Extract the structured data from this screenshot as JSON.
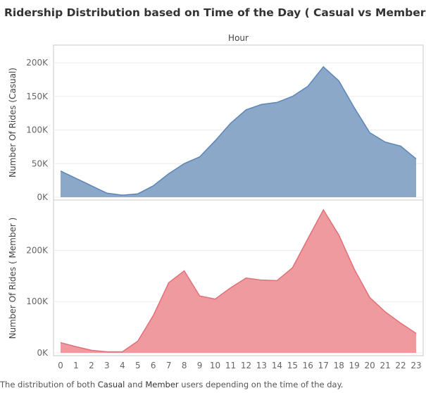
{
  "title": "Ridership Distribution based on Time of the Day ( Casual vs Member )",
  "caption": {
    "prefix": "The distribution of both ",
    "casual": "Casual",
    "and": " and ",
    "member": "Member",
    "suffix": " users depending on the time of the day."
  },
  "colors": {
    "casual": "#7f9fc3",
    "casual_line": "#5b86b8",
    "member": "#ec8f94",
    "member_line": "#e07079",
    "grid": "#ececec",
    "axis": "#c8c8c8"
  },
  "chart_data": [
    {
      "type": "area",
      "title": "Hour",
      "xlabel": "",
      "ylabel": "Number Of Rides (Casual)",
      "x": [
        0,
        1,
        2,
        3,
        4,
        5,
        6,
        7,
        8,
        9,
        10,
        11,
        12,
        13,
        14,
        15,
        16,
        17,
        18,
        19,
        20,
        21,
        22,
        23
      ],
      "series": [
        {
          "name": "Casual",
          "values": [
            39000,
            28000,
            17000,
            6000,
            3000,
            5000,
            17000,
            35000,
            50000,
            60000,
            84000,
            110000,
            130000,
            138000,
            141000,
            150000,
            165000,
            194000,
            173000,
            133000,
            96000,
            82000,
            76000,
            57000
          ]
        }
      ],
      "ylim": [
        0,
        220000
      ],
      "yticks": [
        0,
        50000,
        100000,
        150000,
        200000
      ],
      "ytick_labels": [
        "0K",
        "50K",
        "100K",
        "150K",
        "200K"
      ],
      "grid": true
    },
    {
      "type": "area",
      "xlabel": "",
      "ylabel": "Number Of Rides ( Member )",
      "x": [
        0,
        1,
        2,
        3,
        4,
        5,
        6,
        7,
        8,
        9,
        10,
        11,
        12,
        13,
        14,
        15,
        16,
        17,
        18,
        19,
        20,
        21,
        22,
        23
      ],
      "series": [
        {
          "name": "Member",
          "values": [
            20000,
            12000,
            5000,
            2000,
            2000,
            23000,
            73000,
            137000,
            160000,
            111000,
            105000,
            127000,
            146000,
            142000,
            141000,
            166000,
            223000,
            279000,
            230000,
            163000,
            108000,
            80000,
            58000,
            38000
          ]
        }
      ],
      "ylim": [
        0,
        290000
      ],
      "yticks": [
        0,
        100000,
        200000
      ],
      "ytick_labels": [
        "0K",
        "100K",
        "200K"
      ],
      "grid": true
    }
  ]
}
